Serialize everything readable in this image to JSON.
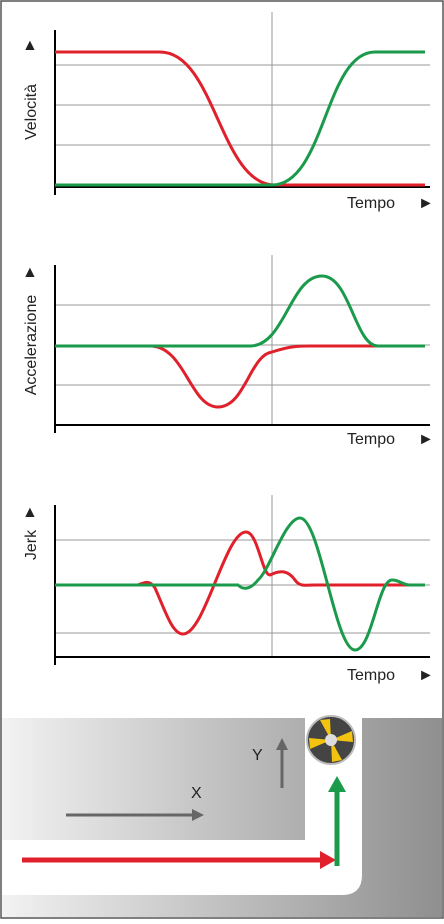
{
  "panels": [
    {
      "y_label": "Velocità",
      "x_label": "Tempo"
    },
    {
      "y_label": "Accelerazione",
      "x_label": "Tempo"
    },
    {
      "y_label": "Jerk",
      "x_label": "Tempo"
    }
  ],
  "illustration": {
    "x_label": "X",
    "y_label": "Y"
  }
}
